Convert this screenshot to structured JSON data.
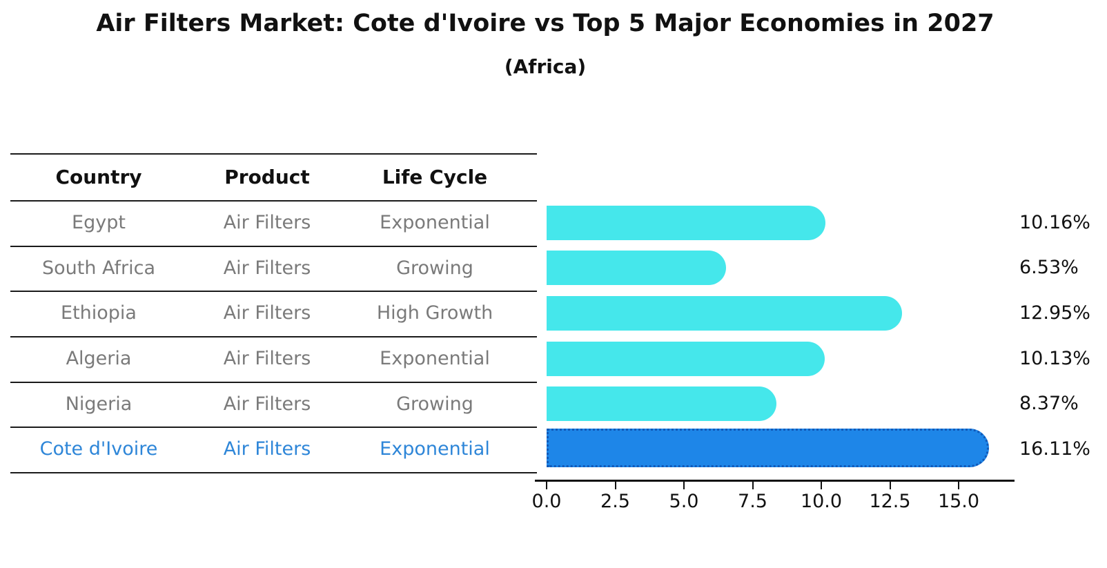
{
  "title": "Air Filters Market: Cote d'Ivoire vs Top 5 Major Economies in 2027",
  "subtitle": "(Africa)",
  "table": {
    "headers": {
      "country": "Country",
      "product": "Product",
      "life_cycle": "Life Cycle"
    },
    "rows": [
      {
        "country": "Egypt",
        "product": "Air Filters",
        "life_cycle": "Exponential"
      },
      {
        "country": "South Africa",
        "product": "Air Filters",
        "life_cycle": "Growing"
      },
      {
        "country": "Ethiopia",
        "product": "Air Filters",
        "life_cycle": "High Growth"
      },
      {
        "country": "Algeria",
        "product": "Air Filters",
        "life_cycle": "Exponential"
      },
      {
        "country": "Nigeria",
        "product": "Air Filters",
        "life_cycle": "Growing"
      },
      {
        "country": "Cote d'Ivoire",
        "product": "Air Filters",
        "life_cycle": "Exponential"
      }
    ],
    "highlighted_row": "Cote d'Ivoire"
  },
  "chart_data": {
    "type": "bar",
    "orientation": "horizontal",
    "categories": [
      "Egypt",
      "South Africa",
      "Ethiopia",
      "Algeria",
      "Nigeria",
      "Cote d'Ivoire"
    ],
    "values": [
      10.16,
      6.53,
      12.95,
      10.13,
      8.37,
      16.11
    ],
    "value_labels": [
      "10.16%",
      "6.53%",
      "12.95%",
      "10.13%",
      "8.37%",
      "16.11%"
    ],
    "x_ticks": [
      0,
      2.5,
      5,
      7.5,
      10,
      12.5,
      15
    ],
    "x_tick_labels": [
      "0.0",
      "2.5",
      "5.0",
      "7.5",
      "10.0",
      "12.5",
      "15.0"
    ],
    "xlim": [
      0,
      17.1
    ],
    "grid": false,
    "legend": false,
    "bar_color": "#45e7eb",
    "highlight_bar_color": "#1e86e8",
    "highlight_border_color": "#1159b8",
    "highlight_index": 5
  },
  "colors": {
    "title_text": "#111111",
    "table_header_text": "#111111",
    "table_row_text": "#7a7a7a",
    "highlight_text": "#2e86d8",
    "axis": "#111111"
  }
}
